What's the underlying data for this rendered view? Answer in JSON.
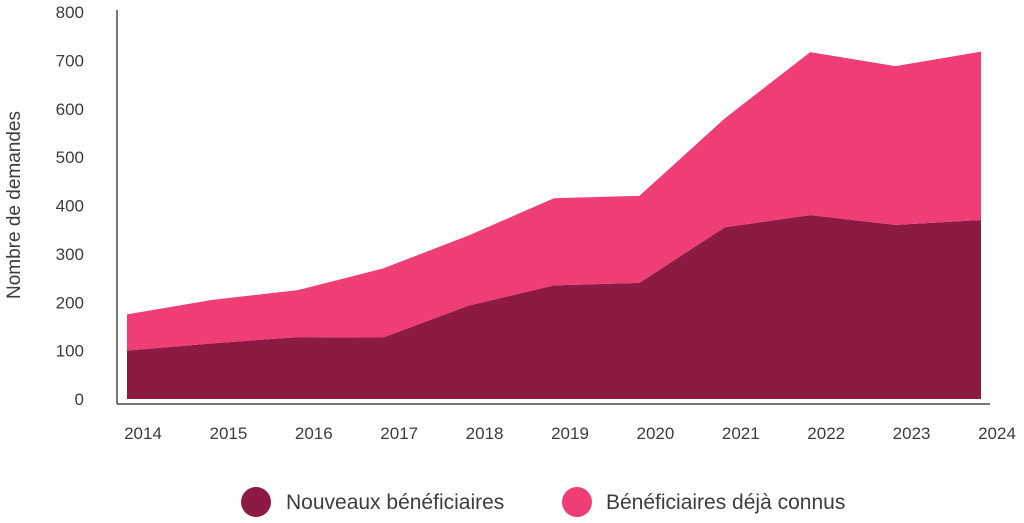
{
  "chart_data": {
    "type": "area",
    "stacked": true,
    "title": "",
    "xlabel": "",
    "ylabel": "Nombre de demandes",
    "x": [
      "2014",
      "2015",
      "2016",
      "2017",
      "2018",
      "2019",
      "2020",
      "2021",
      "2022",
      "2023",
      "2024"
    ],
    "yticks": [
      "0",
      "100",
      "200",
      "300",
      "400",
      "500",
      "600",
      "700",
      "800"
    ],
    "ylim": [
      0,
      800
    ],
    "grid": false,
    "legend_position": "bottom-center",
    "series": [
      {
        "name": "Nouveaux bénéficiaires",
        "color": "#8c1a42",
        "values": [
          100,
          115,
          128,
          127,
          193,
          235,
          240,
          355,
          380,
          360,
          370
        ]
      },
      {
        "name": "Bénéficiaires déjà connus",
        "color": "#ef3d75",
        "values": [
          75,
          90,
          97,
          143,
          145,
          180,
          180,
          225,
          337,
          328,
          348
        ]
      }
    ]
  }
}
